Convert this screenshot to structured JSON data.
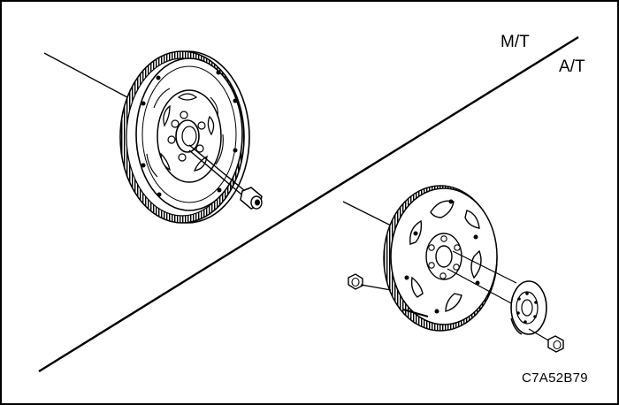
{
  "labels": {
    "manual": "M/T",
    "automatic": "A/T",
    "figure_code": "C7A52B79"
  },
  "parts": {
    "mt": {
      "flywheel": "dual-mass-flywheel-icon",
      "bolt": "flywheel-bolt-icon"
    },
    "at": {
      "flexplate": "flexplate-icon",
      "reinforcement_plate": "reinforcement-plate-icon",
      "bolt_front": "flexplate-bolt-front-icon",
      "bolt_rear": "flexplate-bolt-rear-icon"
    }
  },
  "colors": {
    "ink": "#000000",
    "paper": "#ffffff",
    "shade": "#cfcfcf"
  }
}
